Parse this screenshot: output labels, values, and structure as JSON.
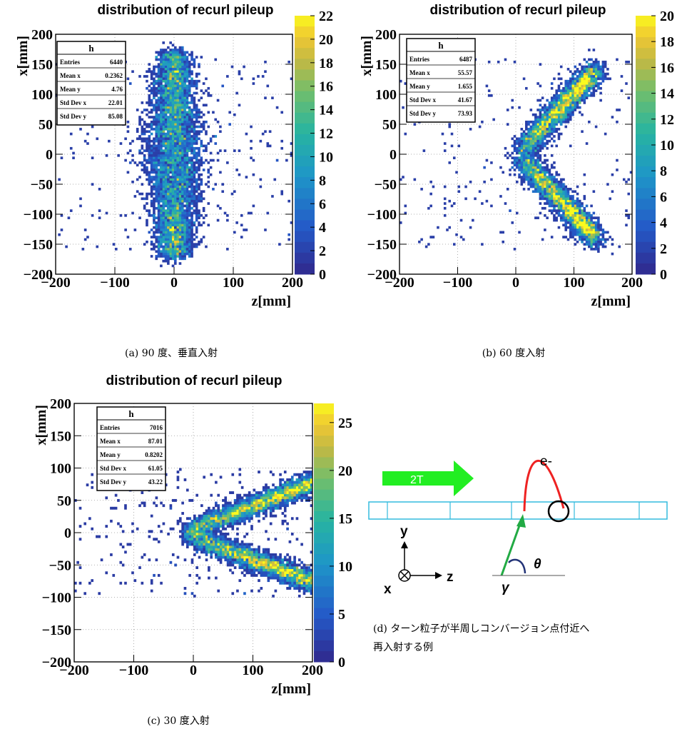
{
  "panels": [
    {
      "id": "a",
      "title": "distribution of recurl pileup",
      "caption": "(a) 90 度、垂直入射",
      "xlabel": "z[mm]",
      "ylabel": "x[mm]",
      "xticks": [
        "−200",
        "−100",
        "0",
        "100",
        "200"
      ],
      "yticks": [
        "200",
        "150",
        "100",
        "50",
        "0",
        "−50",
        "−100",
        "−150",
        "−200"
      ],
      "cbticks": [
        "22",
        "20",
        "18",
        "16",
        "14",
        "12",
        "10",
        "8",
        "6",
        "4",
        "2",
        "0"
      ],
      "stats": {
        "title": "h",
        "rows": [
          {
            "label": "Entries",
            "value": "6440"
          },
          {
            "label": "Mean x",
            "value": "0.2362"
          },
          {
            "label": "Mean y",
            "value": "4.76"
          },
          {
            "label": "Std Dev x",
            "value": "22.01"
          },
          {
            "label": "Std Dev y",
            "value": "85.08"
          }
        ]
      }
    },
    {
      "id": "b",
      "title": "distribution of recurl pileup",
      "caption": "(b) 60 度入射",
      "xlabel": "z[mm]",
      "ylabel": "x[mm]",
      "xticks": [
        "−200",
        "−100",
        "0",
        "100",
        "200"
      ],
      "yticks": [
        "200",
        "150",
        "100",
        "50",
        "0",
        "−50",
        "−100",
        "−150",
        "−200"
      ],
      "cbticks": [
        "20",
        "18",
        "16",
        "14",
        "12",
        "10",
        "8",
        "6",
        "4",
        "2",
        "0"
      ],
      "stats": {
        "title": "h",
        "rows": [
          {
            "label": "Entries",
            "value": "6487"
          },
          {
            "label": "Mean x",
            "value": "55.57"
          },
          {
            "label": "Mean y",
            "value": "1.655"
          },
          {
            "label": "Std Dev x",
            "value": "41.67"
          },
          {
            "label": "Std Dev y",
            "value": "73.93"
          }
        ]
      }
    },
    {
      "id": "c",
      "title": "distribution of recurl pileup",
      "caption": "(c) 30 度入射",
      "xlabel": "z[mm]",
      "ylabel": "x[mm]",
      "xticks": [
        "−200",
        "−100",
        "0",
        "100",
        "200"
      ],
      "yticks": [
        "200",
        "150",
        "100",
        "50",
        "0",
        "−50",
        "−100",
        "−150",
        "−200"
      ],
      "cbticks": [
        "25",
        "20",
        "15",
        "10",
        "5",
        "0"
      ],
      "stats": {
        "title": "h",
        "rows": [
          {
            "label": "Entries",
            "value": "7016"
          },
          {
            "label": "Mean x",
            "value": "87.01"
          },
          {
            "label": "Mean y",
            "value": "0.8202"
          },
          {
            "label": "Std Dev x",
            "value": "61.05"
          },
          {
            "label": "Std Dev y",
            "value": "43.22"
          }
        ]
      }
    }
  ],
  "diagram": {
    "field_label": "2T",
    "electron_label": "e-",
    "y_label": "y",
    "x_label": "x",
    "z_label": "z",
    "theta_label": "θ",
    "gamma_label": "γ",
    "caption_line1": "(d) ターン粒子が半周しコンバージョン点付近へ",
    "caption_line2": "再入射する例"
  },
  "colors": {
    "arrow_field": "#22ee22",
    "detector": "#33bbdd",
    "electron_track": "#ee2222",
    "photon_track": "#22aa44",
    "theta_arc": "#223377"
  },
  "chart_data": [
    {
      "type": "heatmap",
      "title": "distribution of recurl pileup",
      "xlabel": "z[mm]",
      "ylabel": "x[mm]",
      "xlim": [
        -200,
        200
      ],
      "ylim": [
        -200,
        200
      ],
      "zlim": [
        0,
        22
      ],
      "grid": true,
      "legend": "colorbar-right",
      "distribution": "vertical band centered at z=0 spanning x from -170 to 170",
      "stats": {
        "Entries": 6440,
        "Mean x": 0.2362,
        "Mean y": 4.76,
        "Std Dev x": 22.01,
        "Std Dev y": 85.08
      }
    },
    {
      "type": "heatmap",
      "title": "distribution of recurl pileup",
      "xlabel": "z[mm]",
      "ylabel": "x[mm]",
      "xlim": [
        -200,
        200
      ],
      "ylim": [
        -200,
        200
      ],
      "zlim": [
        0,
        20
      ],
      "grid": true,
      "legend": "colorbar-right",
      "distribution": "V shape with vertex near z=0, arms to (130, 140) and (130, -140)",
      "stats": {
        "Entries": 6487,
        "Mean x": 55.57,
        "Mean y": 1.655,
        "Std Dev x": 41.67,
        "Std Dev y": 73.93
      }
    },
    {
      "type": "heatmap",
      "title": "distribution of recurl pileup",
      "xlabel": "z[mm]",
      "ylabel": "x[mm]",
      "xlim": [
        -200,
        200
      ],
      "ylim": [
        -200,
        200
      ],
      "zlim": [
        0,
        27
      ],
      "grid": true,
      "legend": "colorbar-right",
      "distribution": "V shape with vertex near z=0, arms to (200, 80) and (200, -80)",
      "stats": {
        "Entries": 7016,
        "Mean x": 87.01,
        "Mean y": 0.8202,
        "Std Dev x": 61.05,
        "Std Dev y": 43.22
      }
    }
  ]
}
